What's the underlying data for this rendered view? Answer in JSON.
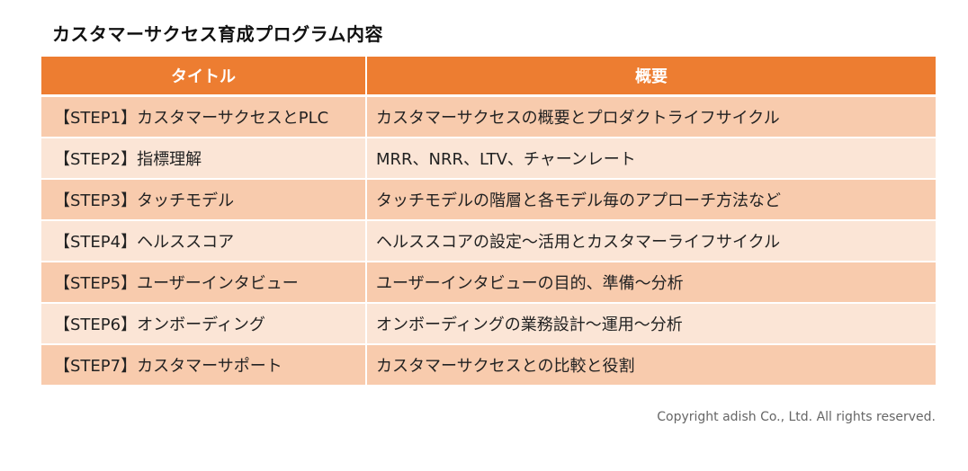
{
  "title": "カスタマーサクセス育成プログラム内容",
  "table": {
    "headers": {
      "title": "タイトル",
      "summary": "概要"
    },
    "rows": [
      {
        "title": "【STEP1】カスタマーサクセスとPLC",
        "summary": "カスタマーサクセスの概要とプロダクトライフサイクル"
      },
      {
        "title": "【STEP2】指標理解",
        "summary": "MRR、NRR、LTV、チャーンレート"
      },
      {
        "title": "【STEP3】タッチモデル",
        "summary": "タッチモデルの階層と各モデル毎のアプローチ方法など"
      },
      {
        "title": "【STEP4】ヘルススコア",
        "summary": "ヘルススコアの設定～活用とカスタマーライフサイクル"
      },
      {
        "title": "【STEP5】ユーザーインタビュー",
        "summary": "ユーザーインタビューの目的、準備～分析"
      },
      {
        "title": "【STEP6】オンボーディング",
        "summary": "オンボーディングの業務設計～運用～分析"
      },
      {
        "title": "【STEP7】カスタマーサポート",
        "summary": "カスタマーサクセスとの比較と役割"
      }
    ],
    "colors": {
      "header": "#ed7d31",
      "row_dark": "#f8cbad",
      "row_light": "#fbe5d6"
    }
  },
  "copyright": "Copyright adish Co., Ltd. All rights reserved."
}
